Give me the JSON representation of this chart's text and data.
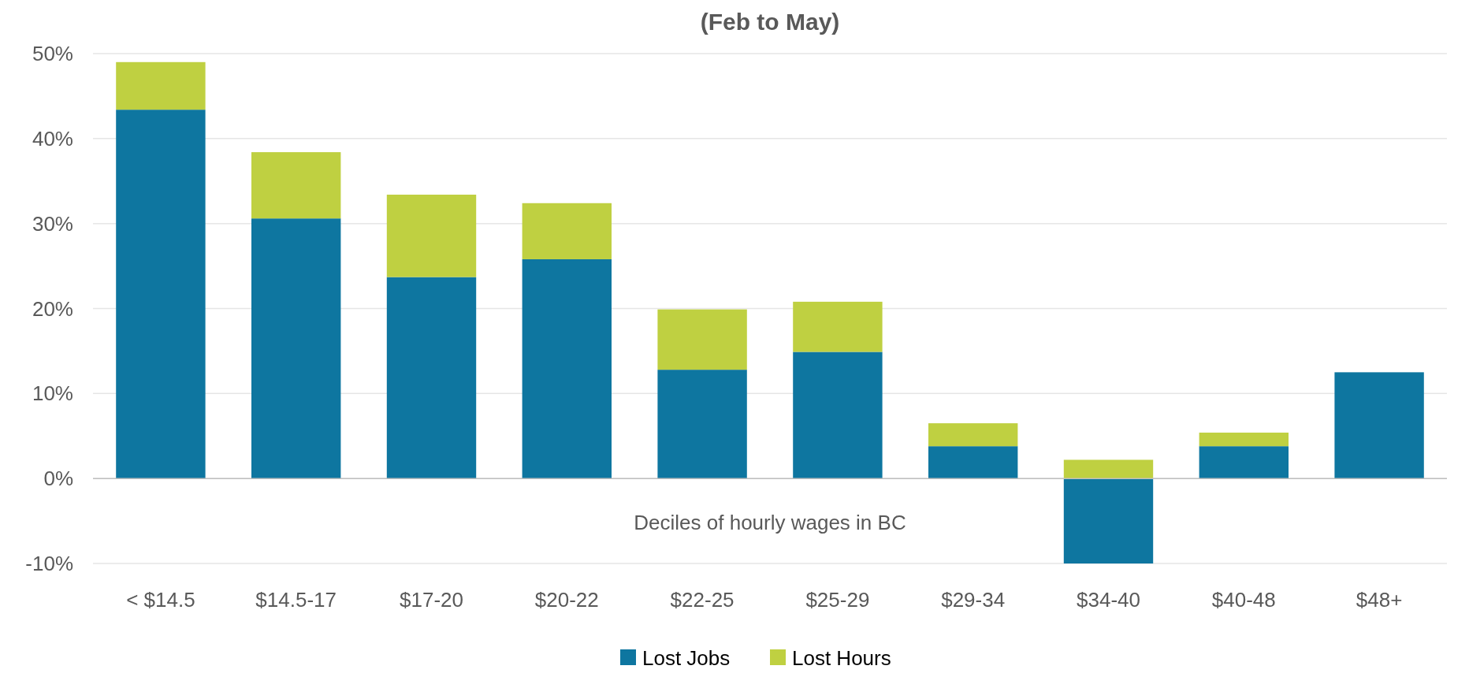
{
  "chart_data": {
    "type": "bar",
    "title": "(Feb to May)",
    "xlabel": "Deciles of hourly wages in BC",
    "categories": [
      "< $14.5",
      "$14.5-17",
      "$17-20",
      "$20-22",
      "$22-25",
      "$25-29",
      "$29-34",
      "$34-40",
      "$40-48",
      "$48+"
    ],
    "stacked": true,
    "series": [
      {
        "name": "Lost Jobs",
        "color": "#0e76a0",
        "values": [
          43.4,
          30.6,
          23.7,
          25.8,
          12.8,
          14.9,
          3.8,
          -10,
          3.8,
          12.5
        ]
      },
      {
        "name": "Lost Hours",
        "color": "#bfd041",
        "values": [
          5.6,
          7.8,
          9.7,
          6.6,
          7.1,
          5.9,
          2.7,
          2.2,
          1.6,
          0
        ]
      }
    ],
    "ylim": [
      -10,
      50
    ],
    "yticks": [
      {
        "value": -10,
        "label": "-10%"
      },
      {
        "value": 0,
        "label": "0%"
      },
      {
        "value": 10,
        "label": "10%"
      },
      {
        "value": 20,
        "label": "20%"
      },
      {
        "value": 30,
        "label": "30%"
      },
      {
        "value": 40,
        "label": "40%"
      },
      {
        "value": 50,
        "label": "50%"
      }
    ],
    "grid": "y",
    "legend": "bottom"
  }
}
